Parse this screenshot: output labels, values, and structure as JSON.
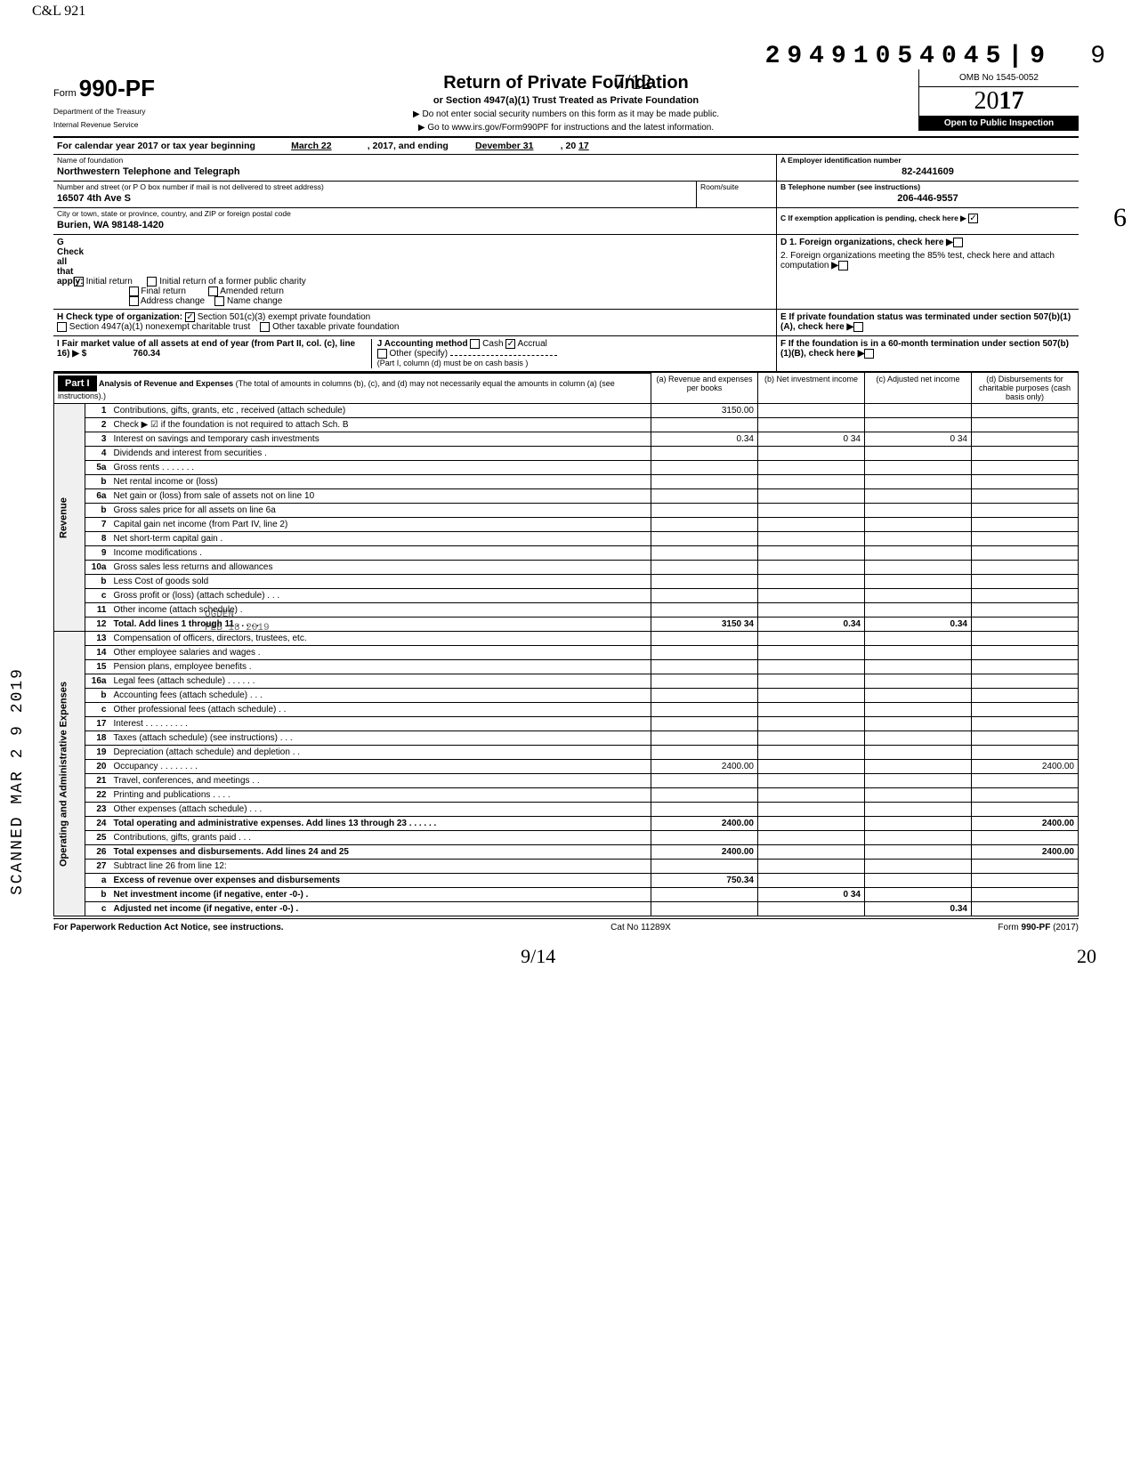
{
  "page": {
    "dln": "29491054045|9",
    "dln_suffix": "9",
    "form_label": "Form",
    "form_number": "990-PF",
    "agency1": "Department of the Treasury",
    "agency2": "Internal Revenue Service",
    "title": "Return of Private Foundation",
    "subtitle": "or Section 4947(a)(1) Trust Treated as Private Foundation",
    "note1": "▶ Do not enter social security numbers on this form as it may be made public.",
    "note2": "▶ Go to www.irs.gov/Form990PF for instructions and the latest information.",
    "omb": "OMB No 1545-0052",
    "year_display": "2017",
    "inspection": "Open to Public Inspection",
    "handwritten_top": "7/12",
    "handwritten_right_margin": "6",
    "handwritten_topleft": "C&L 921"
  },
  "calendar": {
    "label": "For calendar year 2017 or tax year beginning",
    "begin": "March 22",
    "mid": ", 2017, and ending",
    "end_month": "Devember 31",
    "end_year_prefix": ", 20",
    "end_year": "17"
  },
  "identity": {
    "name_label": "Name of foundation",
    "name": "Northwestern Telephone and Telegraph",
    "addr_label": "Number and street (or P O  box number if mail is not delivered to street address)",
    "addr": "16507 4th Ave S",
    "room_label": "Room/suite",
    "room": "",
    "city_label": "City or town, state or province, country, and ZIP or foreign postal code",
    "city": "Burien, WA  98148-1420",
    "a_label": "A  Employer identification number",
    "ein": "82-2441609",
    "b_label": "B  Telephone number (see instructions)",
    "phone": "206-446-9557",
    "c_label": "C  If exemption application is pending, check here ▶"
  },
  "g": {
    "label": "G  Check all that apply:",
    "initial": "Initial return",
    "final": "Final return",
    "addrchange": "Address change",
    "initformer": "Initial return of a former public charity",
    "amended": "Amended return",
    "namechange": "Name change"
  },
  "d": {
    "d1": "D  1. Foreign organizations, check here",
    "d2": "2. Foreign organizations meeting the 85% test, check here and attach computation"
  },
  "e": {
    "label": "E  If private foundation status was terminated under section 507(b)(1)(A), check here"
  },
  "h": {
    "label": "H  Check type of organization:",
    "opt1": "Section 501(c)(3) exempt private foundation",
    "opt2": "Section 4947(a)(1) nonexempt charitable trust",
    "opt3": "Other taxable private foundation"
  },
  "i": {
    "label": "I  Fair market value of all assets at end of year  (from Part II, col. (c), line 16) ▶ $",
    "value": "760.34"
  },
  "j": {
    "label": "J  Accounting method",
    "cash": "Cash",
    "accrual": "Accrual",
    "other": "Other (specify)",
    "note": "(Part I, column (d) must be on cash basis )"
  },
  "f": {
    "label": "F  If the foundation is in a 60-month termination under section 507(b)(1)(B), check here"
  },
  "part1": {
    "header": "Part I",
    "title": "Analysis of Revenue and Expenses",
    "title_note": "(The total of amounts in columns (b), (c), and (d) may not necessarily equal the amounts in column (a) (see instructions).)",
    "col_a": "(a) Revenue and expenses per books",
    "col_b": "(b) Net investment income",
    "col_c": "(c) Adjusted net income",
    "col_d": "(d) Disbursements for charitable purposes (cash basis only)"
  },
  "revenue_label": "Revenue",
  "expenses_label": "Operating and Administrative Expenses",
  "lines": [
    {
      "n": "1",
      "d": "Contributions, gifts, grants, etc , received (attach schedule)",
      "a": "3150.00",
      "b": "",
      "c": "",
      "dd": ""
    },
    {
      "n": "2",
      "d": "Check ▶ ☑ if the foundation is not required to attach Sch. B",
      "a": "",
      "b": "",
      "c": "",
      "dd": ""
    },
    {
      "n": "3",
      "d": "Interest on savings and temporary cash investments",
      "a": "0.34",
      "b": "0 34",
      "c": "0 34",
      "dd": ""
    },
    {
      "n": "4",
      "d": "Dividends and interest from securities  .",
      "a": "",
      "b": "",
      "c": "",
      "dd": ""
    },
    {
      "n": "5a",
      "d": "Gross rents .   .   .   .   .   .   .",
      "a": "",
      "b": "",
      "c": "",
      "dd": ""
    },
    {
      "n": "b",
      "d": "Net rental income or (loss)",
      "a": "",
      "b": "",
      "c": "",
      "dd": ""
    },
    {
      "n": "6a",
      "d": "Net gain or (loss) from sale of assets not on line 10",
      "a": "",
      "b": "",
      "c": "",
      "dd": ""
    },
    {
      "n": "b",
      "d": "Gross sales price for all assets on line 6a",
      "a": "",
      "b": "",
      "c": "",
      "dd": ""
    },
    {
      "n": "7",
      "d": "Capital gain net income (from Part IV, line 2)",
      "a": "",
      "b": "",
      "c": "",
      "dd": ""
    },
    {
      "n": "8",
      "d": "Net short-term capital gain  .",
      "a": "",
      "b": "",
      "c": "",
      "dd": ""
    },
    {
      "n": "9",
      "d": "Income modifications  .",
      "a": "",
      "b": "",
      "c": "",
      "dd": ""
    },
    {
      "n": "10a",
      "d": "Gross sales less returns and allowances",
      "a": "",
      "b": "",
      "c": "",
      "dd": ""
    },
    {
      "n": "b",
      "d": "Less  Cost of goods sold",
      "a": "",
      "b": "",
      "c": "",
      "dd": ""
    },
    {
      "n": "c",
      "d": "Gross profit or (loss) (attach schedule)   .   .   .",
      "a": "",
      "b": "",
      "c": "",
      "dd": ""
    },
    {
      "n": "11",
      "d": "Other income (attach schedule)  .",
      "a": "",
      "b": "",
      "c": "",
      "dd": ""
    },
    {
      "n": "12",
      "d": "Total. Add lines 1 through 11   .   .   .   .   .",
      "a": "3150 34",
      "b": "0.34",
      "c": "0.34",
      "dd": "",
      "bold": true
    }
  ],
  "exp_lines": [
    {
      "n": "13",
      "d": "Compensation of officers, directors, trustees, etc."
    },
    {
      "n": "14",
      "d": "Other employee salaries and wages  ."
    },
    {
      "n": "15",
      "d": "Pension plans, employee benefits  ."
    },
    {
      "n": "16a",
      "d": "Legal fees (attach schedule)   .   .   .   .   .   ."
    },
    {
      "n": "b",
      "d": "Accounting fees (attach schedule)   .   .   ."
    },
    {
      "n": "c",
      "d": "Other professional fees (attach schedule)  .   ."
    },
    {
      "n": "17",
      "d": "Interest  .   .   .   .   .   .   .   .   ."
    },
    {
      "n": "18",
      "d": "Taxes (attach schedule) (see instructions)   .   .   ."
    },
    {
      "n": "19",
      "d": "Depreciation (attach schedule) and depletion  .   ."
    },
    {
      "n": "20",
      "d": "Occupancy .   .   .   .   .   .   .   .",
      "a": "2400.00",
      "dd": "2400.00"
    },
    {
      "n": "21",
      "d": "Travel, conferences, and meetings   .   ."
    },
    {
      "n": "22",
      "d": "Printing and publications   .   .   .   ."
    },
    {
      "n": "23",
      "d": "Other expenses (attach schedule)   .   .   ."
    },
    {
      "n": "24",
      "d": "Total operating and administrative expenses. Add lines 13 through 23 .   .   .   .   .   .",
      "a": "2400.00",
      "dd": "2400.00",
      "bold": true
    },
    {
      "n": "25",
      "d": "Contributions, gifts, grants paid   .   .   ."
    },
    {
      "n": "26",
      "d": "Total expenses and disbursements. Add lines 24 and 25",
      "a": "2400.00",
      "dd": "2400.00",
      "bold": true
    },
    {
      "n": "27",
      "d": "Subtract line 26 from line 12:"
    },
    {
      "n": "a",
      "d": "Excess of revenue over expenses and disbursements",
      "a": "750.34",
      "bold": true
    },
    {
      "n": "b",
      "d": "Net investment income (if negative, enter -0-)  .",
      "b": "0 34",
      "bold": true
    },
    {
      "n": "c",
      "d": "Adjusted net income (if negative, enter -0-)  .",
      "c": "0.34",
      "bold": true
    }
  ],
  "footer": {
    "left": "For Paperwork Reduction Act Notice, see instructions.",
    "mid": "Cat  No  11289X",
    "right": "Form 990-PF (2017)"
  },
  "side_stamp": "SCANNED MAR 2 9 2019",
  "stamp_overlay": {
    "l1": "RECEIVED",
    "l2": "OGDEN",
    "l3": "FEB 18 2019",
    "l4": "IRS"
  },
  "bottom_hw": {
    "l1": "9/14",
    "l2": "20"
  },
  "colors": {
    "ink": "#000000",
    "bg": "#ffffff",
    "shade": "#e8e8e8"
  }
}
